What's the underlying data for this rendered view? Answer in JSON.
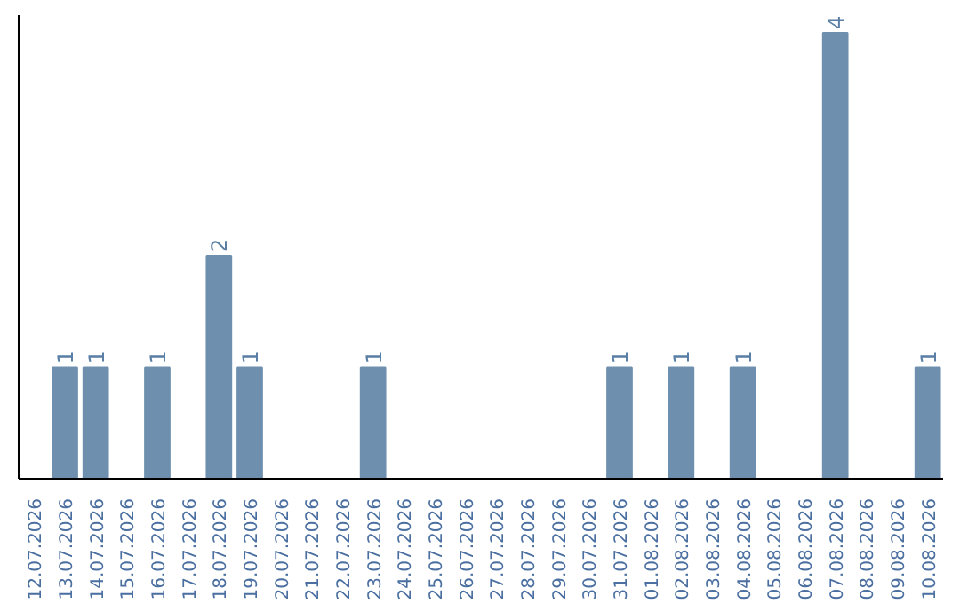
{
  "chart_data": {
    "type": "bar",
    "categories": [
      "12.07.2026",
      "13.07.2026",
      "14.07.2026",
      "15.07.2026",
      "16.07.2026",
      "17.07.2026",
      "18.07.2026",
      "19.07.2026",
      "20.07.2026",
      "21.07.2026",
      "22.07.2026",
      "23.07.2026",
      "24.07.2026",
      "25.07.2026",
      "26.07.2026",
      "27.07.2026",
      "28.07.2026",
      "29.07.2026",
      "30.07.2026",
      "31.07.2026",
      "01.08.2026",
      "02.08.2026",
      "03.08.2026",
      "04.08.2026",
      "05.08.2026",
      "06.08.2026",
      "07.08.2026",
      "08.08.2026",
      "09.08.2026",
      "10.08.2026"
    ],
    "values": [
      0,
      1,
      1,
      0,
      1,
      0,
      2,
      1,
      0,
      0,
      0,
      1,
      0,
      0,
      0,
      0,
      0,
      0,
      0,
      1,
      0,
      1,
      0,
      1,
      0,
      0,
      4,
      0,
      0,
      1
    ],
    "value_labels": [
      null,
      "1",
      "1",
      null,
      "1",
      null,
      "2",
      "1",
      null,
      null,
      null,
      "1",
      null,
      null,
      null,
      null,
      null,
      null,
      null,
      "1",
      null,
      "1",
      null,
      "1",
      null,
      null,
      "4",
      null,
      null,
      "1"
    ],
    "color": "#6e8fae",
    "ylim": [
      0,
      4.16
    ],
    "tick_labels": "x",
    "grid": false
  }
}
